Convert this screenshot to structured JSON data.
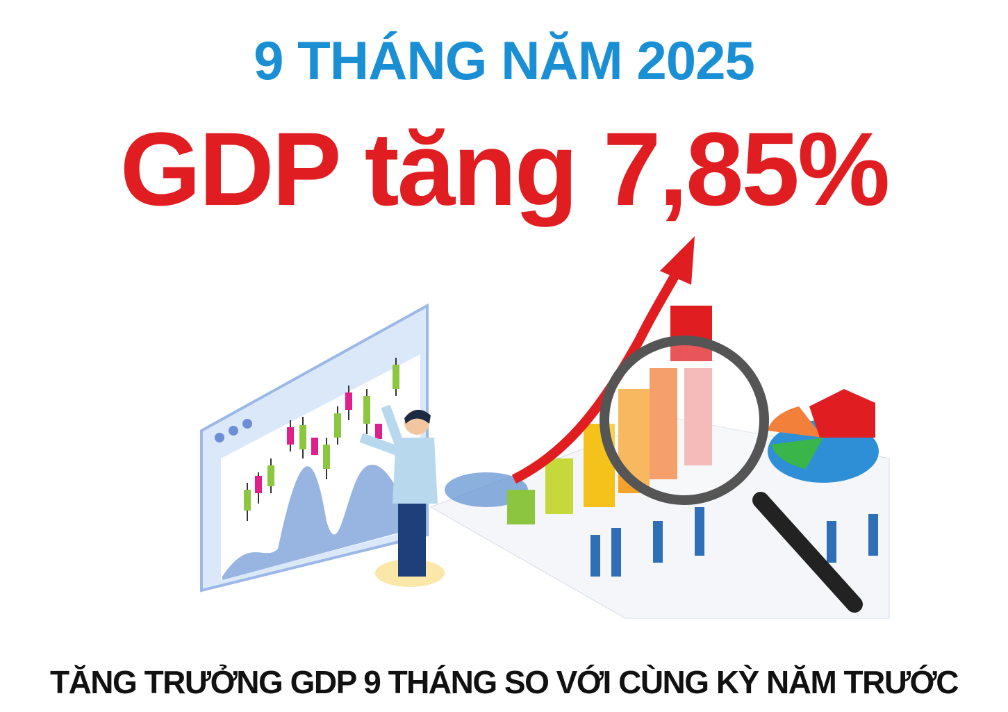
{
  "header": {
    "period": "9 THÁNG NĂM 2025",
    "headline": "GDP tăng 7,85%"
  },
  "footer": {
    "caption": "TĂNG TRƯỞNG GDP 9 THÁNG SO VỚI CÙNG KỲ NĂM TRƯỚC"
  },
  "colors": {
    "period": "#1b8fd3",
    "headline": "#e01e22",
    "caption": "#111111"
  },
  "illustration": {
    "icons": [
      "chart-board-icon",
      "person-icon",
      "growth-arrow-icon",
      "bar-chart-icon",
      "magnifier-icon",
      "pie-chart-icon"
    ]
  }
}
